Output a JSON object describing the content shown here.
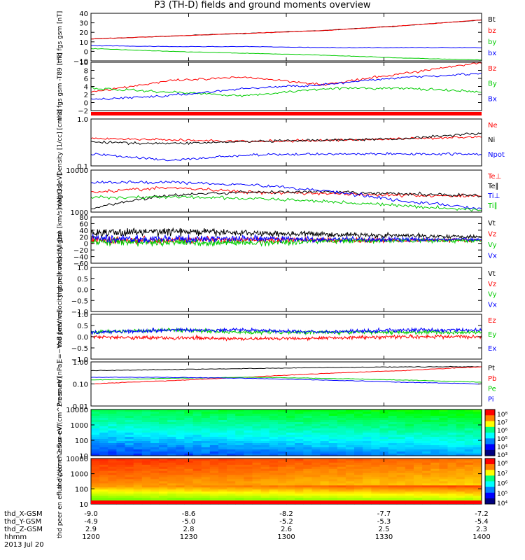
{
  "title": "P3 (TH-D) fields and ground moments overview",
  "date": "2013 Jul 20",
  "colors": {
    "black": "#000000",
    "red": "#ff0000",
    "green": "#00cc00",
    "blue": "#0000ff"
  },
  "chart_data": [
    {
      "type": "line",
      "ylabel": "thd fgs gsm [nT]",
      "ylim": [
        -10,
        40
      ],
      "yticks": [
        "40",
        "30",
        "20",
        "10",
        "0",
        "−10"
      ],
      "series": [
        {
          "name": "Bt",
          "color": "#000000",
          "values": [
            13,
            16,
            19,
            22,
            27,
            33
          ]
        },
        {
          "name": "bz",
          "color": "#ff0000",
          "values": [
            13,
            16,
            19,
            22,
            27,
            33
          ]
        },
        {
          "name": "by",
          "color": "#00cc00",
          "values": [
            3,
            0,
            -2,
            -4,
            -7,
            -9
          ]
        },
        {
          "name": "bx",
          "color": "#0000ff",
          "values": [
            6,
            5,
            5,
            4,
            4,
            4
          ]
        }
      ]
    },
    {
      "type": "line",
      "ylabel": "thd fgs gsm -T89 [nT]",
      "ylim": [
        -3,
        10
      ],
      "yticks": [
        "10",
        "8",
        "6",
        "4",
        "2",
        "0",
        "−2"
      ],
      "series": [
        {
          "name": "Bz",
          "color": "#ff0000",
          "values": [
            2,
            5,
            6,
            4,
            7,
            10
          ]
        },
        {
          "name": "By",
          "color": "#00cc00",
          "values": [
            3,
            2,
            1,
            3,
            3,
            2
          ]
        },
        {
          "name": "Bx",
          "color": "#0000ff",
          "values": [
            0,
            1,
            3,
            4,
            6,
            7
          ]
        }
      ]
    },
    {
      "type": "line",
      "ylabel": "Density [1/cc] [cm-3]",
      "yscale": "log",
      "ylim": [
        0.1,
        1.0
      ],
      "yticks": [
        "1.0",
        "0.1"
      ],
      "series": [
        {
          "name": "Ne",
          "color": "#ff0000",
          "values": [
            0.38,
            0.36,
            0.33,
            0.35,
            0.38,
            0.42
          ]
        },
        {
          "name": "Ni",
          "color": "#000000",
          "values": [
            0.32,
            0.3,
            0.33,
            0.35,
            0.38,
            0.5
          ]
        },
        {
          "name": "Npot",
          "color": "#0000ff",
          "values": [
            0.18,
            0.13,
            0.17,
            0.18,
            0.18,
            0.18
          ]
        }
      ]
    },
    {
      "type": "line",
      "ylabel": "magt3 [eV]",
      "yscale": "log",
      "ylim": [
        1000,
        10000
      ],
      "yticks": [
        "10000",
        "1000"
      ],
      "series": [
        {
          "name": "Te⊥",
          "color": "#ff0000",
          "values": [
            3000,
            3800,
            3000,
            2800,
            2500,
            2400
          ]
        },
        {
          "name": "Te∥",
          "color": "#000000",
          "values": [
            1200,
            2500,
            3000,
            3000,
            2700,
            2500
          ]
        },
        {
          "name": "Ti⊥",
          "color": "#0000ff",
          "values": [
            5000,
            5200,
            4500,
            3200,
            1800,
            1200
          ]
        },
        {
          "name": "Ti∥",
          "color": "#00cc00",
          "values": [
            2200,
            2300,
            2100,
            1800,
            1400,
            1100
          ]
        }
      ]
    },
    {
      "type": "line",
      "ylabel": "thd peir velocity gsm [km/s] (All Qs)",
      "ylim": [
        -80,
        80
      ],
      "yticks": [
        "80",
        "60",
        "40",
        "20",
        "0",
        "−20",
        "−40",
        "−60"
      ],
      "series": [
        {
          "name": "Vt",
          "color": "#000000",
          "values": [
            25,
            30,
            25,
            20,
            15,
            12
          ]
        },
        {
          "name": "Vz",
          "color": "#ff0000",
          "values": [
            0,
            0,
            0,
            0,
            0,
            0
          ]
        },
        {
          "name": "Vy",
          "color": "#00cc00",
          "values": [
            -5,
            -8,
            -10,
            -3,
            -2,
            -2
          ]
        },
        {
          "name": "Vx",
          "color": "#0000ff",
          "values": [
            5,
            3,
            5,
            2,
            2,
            2
          ]
        }
      ]
    },
    {
      "type": "line",
      "ylabel": "thd peer velocity gsm [km/s] (All Qs)",
      "ylim": [
        -1.0,
        1.0
      ],
      "yticks": [
        "1.0",
        "0.5",
        "0.0",
        "−0.5",
        "−1.0"
      ],
      "series": [
        {
          "name": "Vt",
          "color": "#000000",
          "values": []
        },
        {
          "name": "Vz",
          "color": "#ff0000",
          "values": []
        },
        {
          "name": "Vy",
          "color": "#00cc00",
          "values": []
        },
        {
          "name": "Vx",
          "color": "#0000ff",
          "values": []
        }
      ]
    },
    {
      "type": "line",
      "ylabel": "E=−VxB [mV/m]",
      "ylim": [
        -1.0,
        1.0
      ],
      "yticks": [
        "1.0",
        "0.5",
        "0.0",
        "−0.5",
        "−1.0"
      ],
      "series": [
        {
          "name": "Ez",
          "color": "#ff0000",
          "values": [
            0,
            -0.05,
            -0.1,
            -0.05,
            0,
            0
          ]
        },
        {
          "name": "Ey",
          "color": "#00cc00",
          "values": [
            0.2,
            0.3,
            0.2,
            0.2,
            0.2,
            0.2
          ]
        },
        {
          "name": "Ex",
          "color": "#0000ff",
          "values": [
            0.2,
            0.3,
            0.3,
            0.2,
            0.3,
            0.3
          ]
        }
      ]
    },
    {
      "type": "line",
      "ylabel": "Pressure [nPa]",
      "yscale": "log",
      "ylim": [
        0.01,
        1.0
      ],
      "yticks": [
        "1.00",
        "0.10",
        "0.01"
      ],
      "series": [
        {
          "name": "Pt",
          "color": "#000000",
          "values": [
            0.4,
            0.45,
            0.5,
            0.55,
            0.6,
            0.6
          ]
        },
        {
          "name": "Pb",
          "color": "#ff0000",
          "values": [
            0.1,
            0.14,
            0.2,
            0.3,
            0.4,
            0.6
          ]
        },
        {
          "name": "Pe",
          "color": "#00cc00",
          "values": [
            0.15,
            0.18,
            0.2,
            0.18,
            0.15,
            0.12
          ]
        },
        {
          "name": "Pi",
          "color": "#0000ff",
          "values": [
            0.2,
            0.2,
            0.18,
            0.15,
            0.12,
            0.1
          ]
        }
      ]
    },
    {
      "type": "heatmap",
      "ylabel": "thd peir en eflux eV/(cm^2-s-sr-eV)",
      "yscale": "log",
      "ylim": [
        10,
        20000
      ],
      "yticks": [
        "10000",
        "1000",
        "100",
        "10"
      ],
      "colorbar": {
        "ticks": [
          "10⁸",
          "10⁷",
          "10⁶",
          "10⁵",
          "10⁴",
          "10³"
        ]
      }
    },
    {
      "type": "heatmap",
      "ylabel": "thd peer en eflux eV/(cm^2-s-sr-eV)",
      "yscale": "log",
      "ylim": [
        10,
        20000
      ],
      "yticks": [
        "10000",
        "1000",
        "100",
        "10"
      ],
      "colorbar": {
        "ticks": [
          "10⁸",
          "10⁷",
          "10⁶",
          "10⁵",
          "10⁴"
        ]
      }
    }
  ],
  "footer": {
    "labels": [
      "thd_X-GSM",
      "thd_Y-GSM",
      "thd_Z-GSM",
      "hhmm"
    ],
    "columns": [
      {
        "x": "-9.0",
        "y": "-4.9",
        "z": "2.9",
        "t": "1200"
      },
      {
        "x": "-8.6",
        "y": "-5.0",
        "z": "2.8",
        "t": "1230"
      },
      {
        "x": "-8.2",
        "y": "-5.2",
        "z": "2.6",
        "t": "1300"
      },
      {
        "x": "-7.7",
        "y": "-5.3",
        "z": "2.5",
        "t": "1330"
      },
      {
        "x": "-7.2",
        "y": "-5.4",
        "z": "2.3",
        "t": "1400"
      }
    ]
  }
}
